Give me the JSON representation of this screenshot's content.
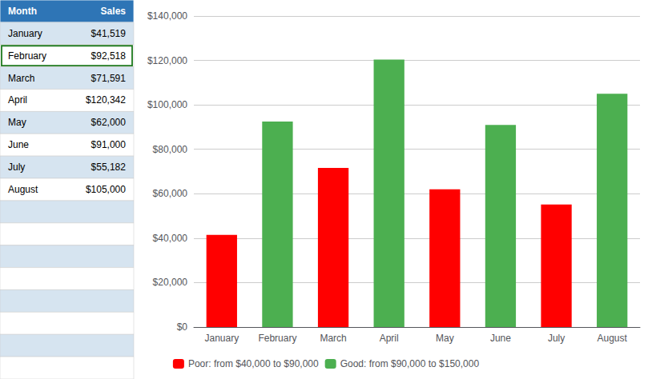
{
  "chart_data": {
    "type": "bar",
    "categories": [
      "January",
      "February",
      "March",
      "April",
      "May",
      "June",
      "July",
      "August"
    ],
    "series": [
      {
        "name": "Poor: from $40,000 to $90,000",
        "color": "#FF0000",
        "values": [
          41519,
          null,
          71591,
          null,
          62000,
          null,
          55182,
          null
        ]
      },
      {
        "name": "Good: from $90,000 to $150,000",
        "color": "#4CAF50",
        "values": [
          null,
          92518,
          null,
          120342,
          null,
          91000,
          null,
          105000
        ]
      }
    ],
    "ylim": [
      0,
      140000
    ],
    "yticks": [
      {
        "value": 0,
        "label": "$0"
      },
      {
        "value": 20000,
        "label": "$20,000"
      },
      {
        "value": 40000,
        "label": "$40,000"
      },
      {
        "value": 60000,
        "label": "$60,000"
      },
      {
        "value": 80000,
        "label": "$80,000"
      },
      {
        "value": 100000,
        "label": "$100,000"
      },
      {
        "value": 120000,
        "label": "$120,000"
      },
      {
        "value": 140000,
        "label": "$140,000"
      }
    ],
    "grid": true,
    "legend": "bottom",
    "table": {
      "columns": [
        "Month",
        "Sales"
      ],
      "rows": [
        [
          "January",
          "$41,519"
        ],
        [
          "February",
          "$92,518"
        ],
        [
          "March",
          "$71,591"
        ],
        [
          "April",
          "$120,342"
        ],
        [
          "May",
          "$62,000"
        ],
        [
          "June",
          "$91,000"
        ],
        [
          "July",
          "$55,182"
        ],
        [
          "August",
          "$105,000"
        ]
      ],
      "header_color": "#2E75B6",
      "header_text_color": "#FFFFFF",
      "row_colors": [
        "#D6E4F0",
        "#FFFFFF"
      ],
      "highlight": "February",
      "highlight_color": "#1F7A1F"
    }
  }
}
